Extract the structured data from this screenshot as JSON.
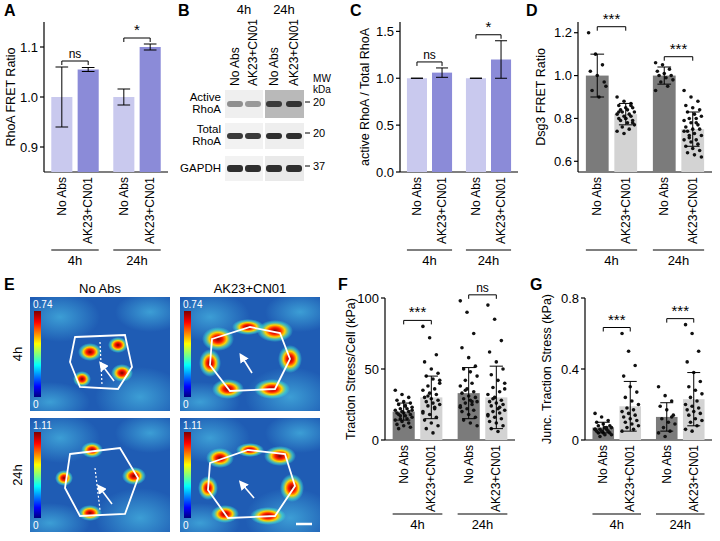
{
  "chart_data": [
    {
      "panel": "A",
      "type": "bar",
      "ylabel": "RhoA FRET Ratio",
      "categories": [
        "No Abs",
        "AK23+CN01",
        "No Abs",
        "AK23+CN01"
      ],
      "groups": [
        "4h",
        "24h"
      ],
      "values": [
        1.0,
        1.055,
        1.0,
        1.1
      ],
      "errors": [
        0.06,
        0.004,
        0.016,
        0.006
      ],
      "colors": [
        "#c9c9ee",
        "#8b8bd8",
        "#c9c9ee",
        "#8b8bd8"
      ],
      "annotations": [
        "ns",
        "*"
      ],
      "ylim": [
        0.85,
        1.15
      ],
      "yticks": [
        0.9,
        {
          "value": 1,
          "label": "1.0"
        },
        1.1
      ]
    },
    {
      "panel": "C",
      "type": "bar",
      "ylabel": "active RhoA / Total RhoA",
      "categories": [
        "No Abs",
        "AK23+CN01",
        "No Abs",
        "AK23+CN01"
      ],
      "groups": [
        "4h",
        "24h"
      ],
      "values": [
        1.0,
        1.06,
        1.0,
        1.2
      ],
      "errors": [
        0,
        0.05,
        0,
        0.2
      ],
      "colors": [
        "#c9c9ee",
        "#8b8bd8",
        "#c9c9ee",
        "#8b8bd8"
      ],
      "annotations": [
        "ns",
        "*"
      ],
      "ylim": [
        0,
        1.6
      ],
      "yticks": [
        {
          "value": 0,
          "label": "0.0"
        },
        0.5,
        {
          "value": 1,
          "label": "1.0"
        },
        1.5
      ]
    },
    {
      "panel": "D",
      "type": "bar",
      "ylabel": "Dsg3 FRET Ratio",
      "categories": [
        "No Abs",
        "AK23+CN01",
        "No Abs",
        "AK23+CN01"
      ],
      "groups": [
        "4h",
        "24h"
      ],
      "values": [
        1.0,
        0.82,
        1.0,
        0.75
      ],
      "errors": [
        0.1,
        0.05,
        0.04,
        0.08
      ],
      "colors": [
        "#7b7b7b",
        "#d3d3d3",
        "#7b7b7b",
        "#d3d3d3"
      ],
      "annotations": [
        "***",
        "***"
      ],
      "ylim": [
        0.55,
        1.25
      ],
      "yticks": [
        0.6,
        0.8,
        {
          "value": 1,
          "label": "1.0"
        },
        1.2
      ],
      "points": [
        [
          1.2,
          1.1,
          1.05,
          1.02,
          1.0,
          0.97,
          0.93,
          0.9,
          0.95
        ],
        [
          0.9,
          0.88,
          0.87,
          0.86,
          0.85,
          0.85,
          0.84,
          0.84,
          0.83,
          0.83,
          0.82,
          0.82,
          0.81,
          0.81,
          0.8,
          0.8,
          0.79,
          0.79,
          0.78,
          0.77,
          0.76,
          0.75,
          0.74,
          0.73,
          0.86,
          0.83,
          0.8,
          0.78
        ],
        [
          1.06,
          1.05,
          1.03,
          1.02,
          1.01,
          1.0,
          1.0,
          0.99,
          0.98,
          0.97,
          0.95,
          0.93
        ],
        [
          0.93,
          0.9,
          0.88,
          0.86,
          0.85,
          0.84,
          0.83,
          0.82,
          0.81,
          0.8,
          0.8,
          0.79,
          0.78,
          0.77,
          0.76,
          0.75,
          0.75,
          0.74,
          0.73,
          0.72,
          0.71,
          0.7,
          0.7,
          0.69,
          0.68,
          0.67,
          0.66,
          0.65,
          0.64,
          0.63,
          0.62,
          0.72,
          0.78,
          0.74
        ]
      ]
    },
    {
      "panel": "F",
      "type": "bar",
      "ylabel": "Traction Stress/Cell (kPa)",
      "categories": [
        "No Abs",
        "AK23+CN01",
        "No Abs",
        "AK23+CN01"
      ],
      "groups": [
        "4h",
        "24h"
      ],
      "values": [
        20,
        30,
        33,
        30
      ],
      "errors": [
        6,
        15,
        18,
        22
      ],
      "colors": [
        "#7b7b7b",
        "#d3d3d3",
        "#7b7b7b",
        "#d3d3d3"
      ],
      "annotations": [
        "***",
        "ns"
      ],
      "ylim": [
        0,
        100
      ],
      "yticks": [
        0,
        50,
        100
      ],
      "points": [
        [
          35,
          32,
          30,
          28,
          27,
          26,
          25,
          24,
          23,
          22,
          22,
          21,
          20,
          20,
          19,
          19,
          18,
          18,
          17,
          16,
          15,
          15,
          14,
          13,
          12,
          11,
          10,
          9,
          8,
          24,
          21,
          17
        ],
        [
          80,
          72,
          60,
          55,
          50,
          47,
          45,
          43,
          40,
          38,
          36,
          35,
          33,
          32,
          30,
          29,
          28,
          27,
          26,
          25,
          24,
          22,
          20,
          18,
          16,
          14,
          12,
          10,
          8,
          5,
          42,
          31,
          23,
          19
        ],
        [
          98,
          90,
          75,
          65,
          58,
          52,
          50,
          48,
          45,
          42,
          40,
          38,
          36,
          34,
          33,
          31,
          30,
          29,
          28,
          27,
          26,
          25,
          24,
          22,
          21,
          20,
          18,
          16,
          14,
          12,
          10,
          35,
          27,
          23
        ],
        [
          95,
          85,
          70,
          62,
          55,
          50,
          46,
          42,
          40,
          37,
          34,
          32,
          30,
          28,
          27,
          26,
          25,
          24,
          22,
          21,
          20,
          19,
          18,
          16,
          15,
          13,
          12,
          10,
          8,
          6,
          36,
          29,
          23,
          17
        ]
      ]
    },
    {
      "panel": "G",
      "type": "bar",
      "ylabel": "Junc. Traction Stress (kPa)",
      "categories": [
        "No Abs",
        "AK23+CN01",
        "No Abs",
        "AK23+CN01"
      ],
      "groups": [
        "4h",
        "24h"
      ],
      "values": [
        0.07,
        0.19,
        0.13,
        0.23
      ],
      "errors": [
        0.03,
        0.14,
        0.08,
        0.15
      ],
      "colors": [
        "#7b7b7b",
        "#d3d3d3",
        "#7b7b7b",
        "#d3d3d3"
      ],
      "annotations": [
        "***",
        "***"
      ],
      "ylim": [
        0,
        0.8
      ],
      "yticks": [
        0,
        0.4,
        0.8
      ],
      "points": [
        [
          0.15,
          0.13,
          0.11,
          0.1,
          0.09,
          0.08,
          0.08,
          0.07,
          0.07,
          0.06,
          0.06,
          0.06,
          0.05,
          0.05,
          0.05,
          0.04,
          0.04,
          0.04,
          0.03,
          0.03,
          0.02,
          0.07,
          0.06
        ],
        [
          0.6,
          0.5,
          0.42,
          0.36,
          0.3,
          0.27,
          0.24,
          0.22,
          0.2,
          0.18,
          0.17,
          0.16,
          0.15,
          0.14,
          0.13,
          0.12,
          0.11,
          0.1,
          0.09,
          0.08,
          0.07,
          0.06,
          0.05
        ],
        [
          0.3,
          0.25,
          0.22,
          0.19,
          0.17,
          0.14,
          0.12,
          0.1,
          0.09,
          0.07,
          0.05,
          0.04,
          0.02,
          0.13
        ],
        [
          0.65,
          0.6,
          0.5,
          0.44,
          0.38,
          0.33,
          0.3,
          0.28,
          0.26,
          0.24,
          0.22,
          0.2,
          0.19,
          0.18,
          0.17,
          0.16,
          0.15,
          0.14,
          0.12,
          0.11,
          0.1,
          0.08,
          0.06,
          0.05
        ]
      ]
    }
  ],
  "blot": {
    "panel": "B",
    "columns": [
      "4h",
      "24h"
    ],
    "lanes": [
      "No Abs",
      "AK23+CN01",
      "No Abs",
      "AK23+CN01"
    ],
    "rows": [
      [
        "Active",
        "RhoA"
      ],
      [
        "Total",
        "RhoA"
      ],
      [
        "GAPDH"
      ]
    ],
    "mw_title": [
      "MW",
      "kDa"
    ],
    "mw_markers": [
      20,
      20,
      37
    ]
  },
  "heatmap": {
    "panel": "E",
    "columns": [
      "No Abs",
      "AK23+CN01"
    ],
    "rows": [
      "4h",
      "24h"
    ],
    "colorbars": [
      {
        "min": 0,
        "max": 0.74
      },
      {
        "min": 0,
        "max": 1.11
      }
    ]
  }
}
